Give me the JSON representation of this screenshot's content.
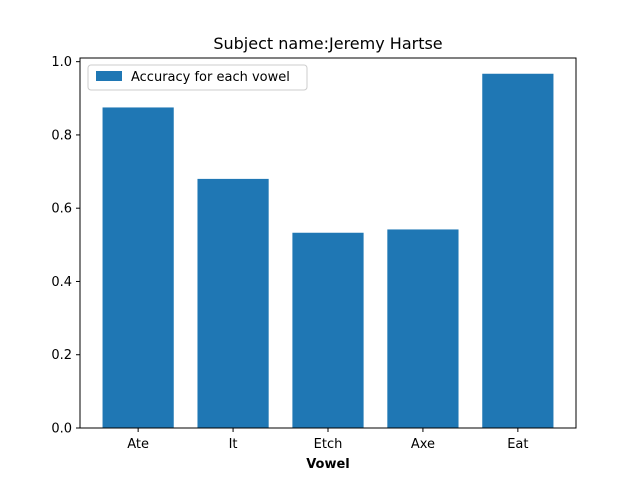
{
  "chart_data": {
    "type": "bar",
    "title": "Subject name:Jeremy Hartse",
    "xlabel": "Vowel",
    "ylabel": "",
    "categories": [
      "Ate",
      "It",
      "Etch",
      "Axe",
      "Eat"
    ],
    "series": [
      {
        "name": "Accuracy for each vowel",
        "values": [
          0.875,
          0.68,
          0.533,
          0.542,
          0.967
        ]
      }
    ],
    "ylim": [
      0,
      1.01
    ],
    "yticks": [
      "0.0",
      "0.2",
      "0.4",
      "0.6",
      "0.8",
      "1.0"
    ],
    "grid": false,
    "legend_position": "upper-left",
    "colors": {
      "bar": "#1f77b4",
      "axis": "#000000",
      "background": "#ffffff"
    }
  }
}
